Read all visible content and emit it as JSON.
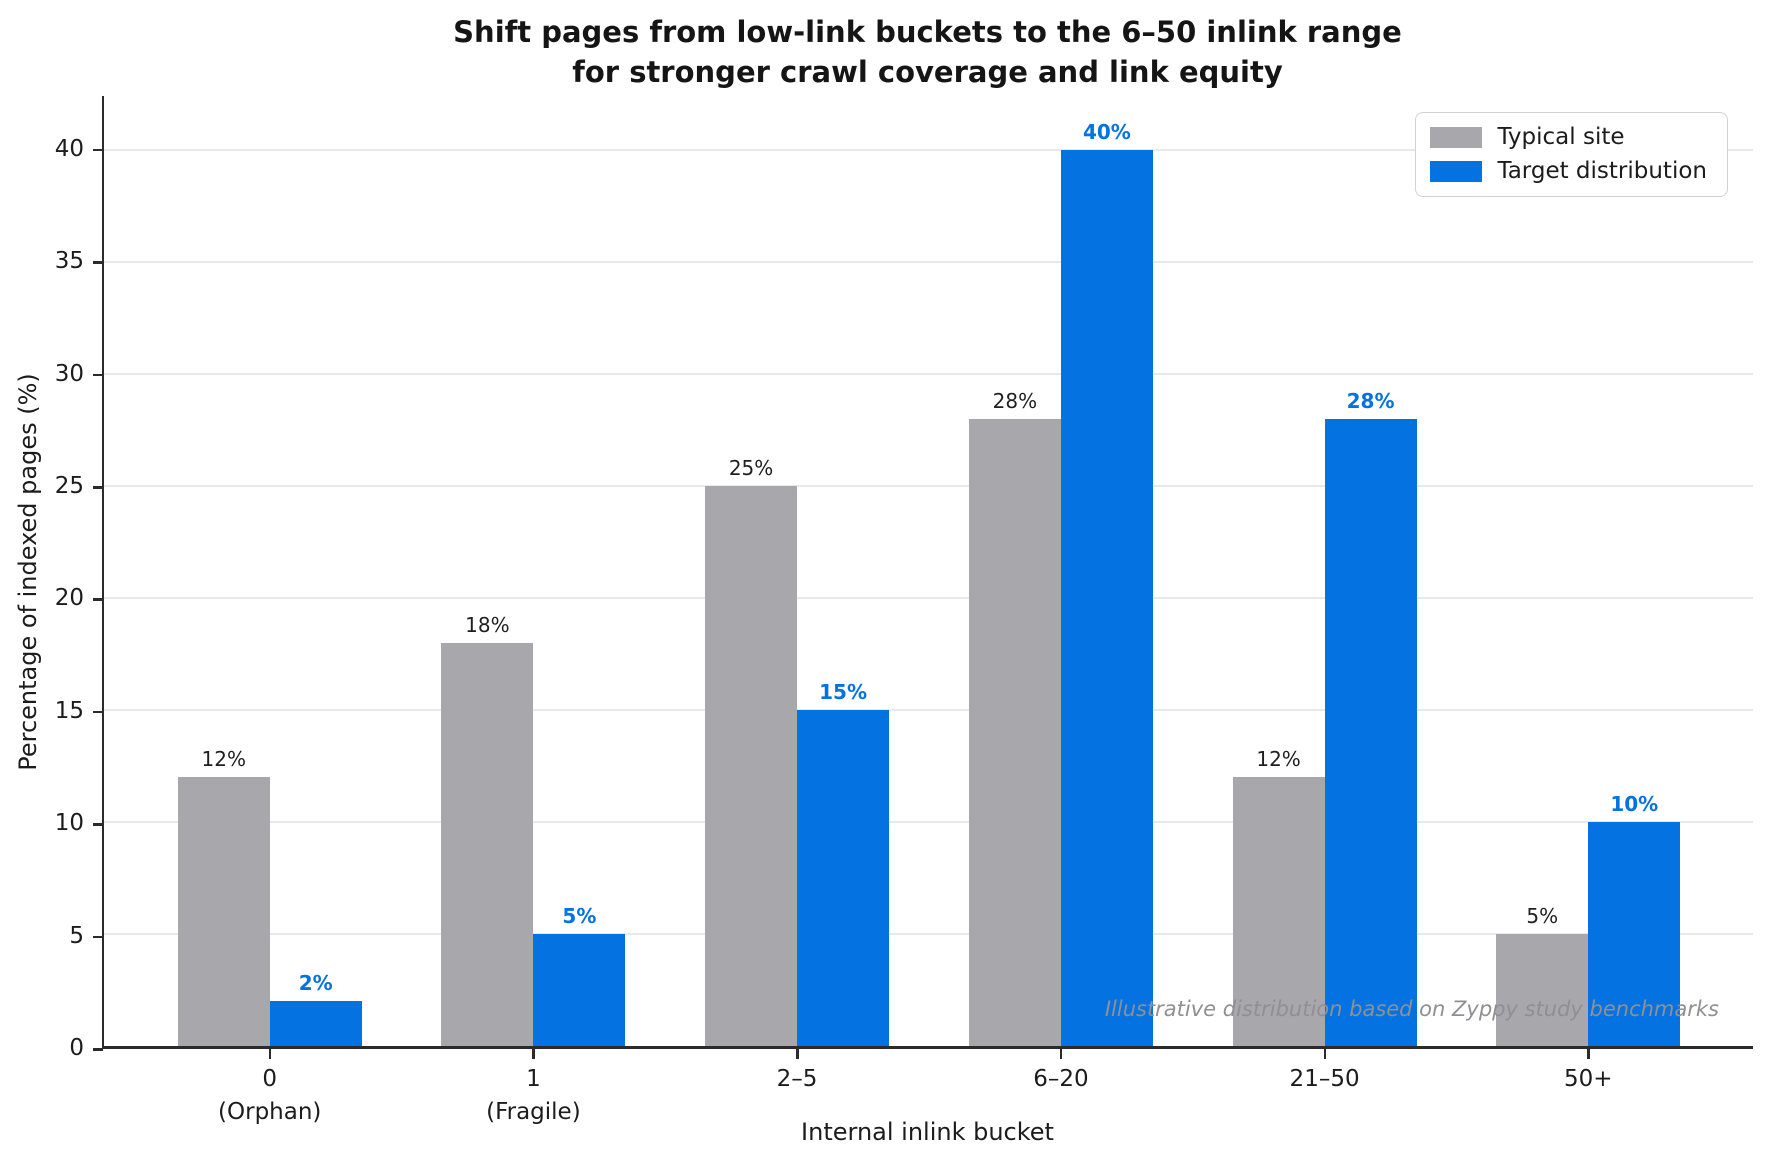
{
  "title": {
    "line1": "Shift pages from low-link buckets to the 6–50 inlink range",
    "line2": "for stronger crawl coverage and link equity"
  },
  "annotation": "Illustrative distribution based on Zyppy study benchmarks",
  "legend": {
    "items": [
      {
        "label": "Typical site",
        "color": "#a7a7ac"
      },
      {
        "label": "Target distribution",
        "color": "#0473e1"
      }
    ]
  },
  "chart_data": {
    "type": "bar",
    "title": "Shift pages from low-link buckets to the 6–50 inlink range for stronger crawl coverage and link equity",
    "xlabel": "Internal inlink bucket",
    "ylabel": "Percentage of indexed pages (%)",
    "categories": [
      {
        "label": "0",
        "sublabel": "(Orphan)"
      },
      {
        "label": "1",
        "sublabel": "(Fragile)"
      },
      {
        "label": "2–5",
        "sublabel": ""
      },
      {
        "label": "6–20",
        "sublabel": ""
      },
      {
        "label": "21–50",
        "sublabel": ""
      },
      {
        "label": "50+",
        "sublabel": ""
      }
    ],
    "series": [
      {
        "name": "Typical site",
        "color": "#a7a7ac",
        "values": [
          12,
          18,
          25,
          28,
          12,
          5
        ],
        "labels": [
          "12%",
          "18%",
          "25%",
          "28%",
          "12%",
          "5%"
        ],
        "label_color": "#1f1f1f",
        "label_bold": false
      },
      {
        "name": "Target distribution",
        "color": "#0473e1",
        "values": [
          2,
          5,
          15,
          40,
          28,
          10
        ],
        "labels": [
          "2%",
          "5%",
          "15%",
          "40%",
          "28%",
          "10%"
        ],
        "label_color": "#0473e1",
        "label_bold": true
      }
    ],
    "yticks": [
      0,
      5,
      10,
      15,
      20,
      25,
      30,
      35,
      40
    ],
    "ylim": [
      0,
      42.4
    ],
    "grid": "horizontal",
    "legend_position": "upper right",
    "annotation": "Illustrative distribution based on Zyppy study benchmarks"
  }
}
